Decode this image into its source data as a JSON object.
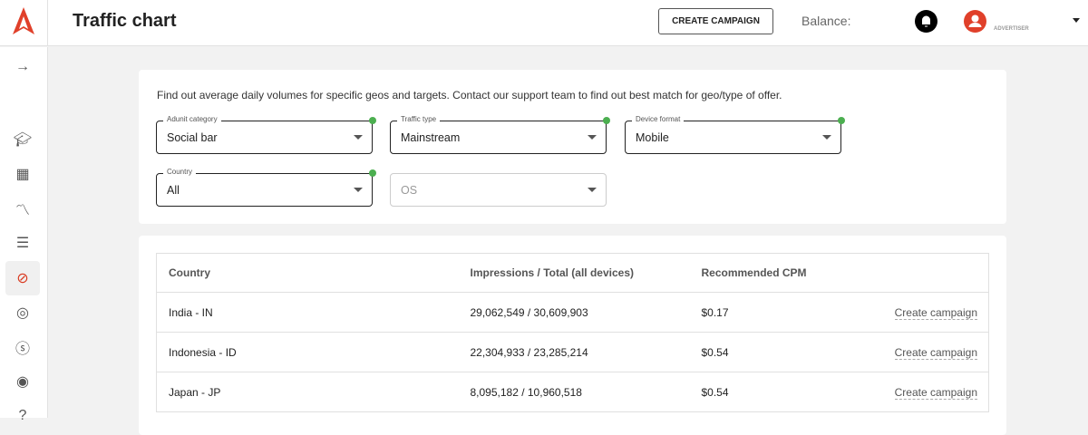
{
  "header": {
    "title": "Traffic chart",
    "create_campaign": "CREATE CAMPAIGN",
    "balance_label": "Balance:",
    "role": "ADVERTISER",
    "brand_color": "#e0402a"
  },
  "sidebar": {
    "items": [
      {
        "icon": "arrow-right-icon"
      },
      {
        "icon": "graduation-cap-icon"
      },
      {
        "icon": "dashboard-icon"
      },
      {
        "icon": "analytics-search-icon"
      },
      {
        "icon": "list-icon"
      },
      {
        "icon": "compass-icon",
        "active": true
      },
      {
        "icon": "globe-search-icon"
      },
      {
        "icon": "dollar-icon"
      },
      {
        "icon": "target-icon"
      },
      {
        "icon": "help-icon"
      }
    ]
  },
  "filters": {
    "description": "Find out average daily volumes for specific geos and targets. Contact our support team to find out best match for geo/type of offer.",
    "adunit": {
      "label": "Adunit category",
      "value": "Social bar"
    },
    "traffic": {
      "label": "Traffic type",
      "value": "Mainstream"
    },
    "device": {
      "label": "Device format",
      "value": "Mobile"
    },
    "country": {
      "label": "Country",
      "value": "All"
    },
    "os": {
      "placeholder": "OS"
    }
  },
  "table": {
    "headers": [
      "Country",
      "Impressions / Total (all devices)",
      "Recommended CPM",
      ""
    ],
    "rows": [
      {
        "country": "India - IN",
        "impressions": "29,062,549 / 30,609,903",
        "cpm": "$0.17",
        "action": "Create campaign"
      },
      {
        "country": "Indonesia - ID",
        "impressions": "22,304,933 / 23,285,214",
        "cpm": "$0.54",
        "action": "Create campaign"
      },
      {
        "country": "Japan - JP",
        "impressions": "8,095,182 / 10,960,518",
        "cpm": "$0.54",
        "action": "Create campaign"
      }
    ]
  }
}
